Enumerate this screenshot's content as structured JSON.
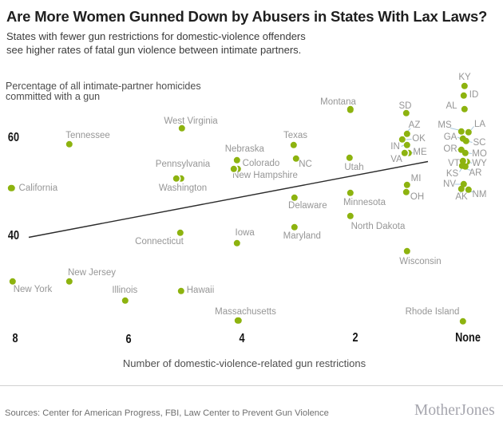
{
  "title": "Are More Women Gunned Down by Abusers in States With Lax Laws?",
  "subtitle_line1": "States with fewer gun restrictions for domestic-violence offenders",
  "subtitle_line2": "see higher rates of fatal gun violence between intimate partners.",
  "y_axis_label_line1": "Percentage of all intimate-partner homicides",
  "y_axis_label_line2": "committed with a gun",
  "x_axis_label": "Number of domestic-violence-related gun restrictions",
  "footer": {
    "sources": "Sources: Center for American Progress, FBI, Law Center to Prevent Gun Violence",
    "logo": "MotherJones"
  },
  "colors": {
    "dot": "#8DB30F",
    "state_label": "#969696",
    "leader": "#A8C9DC",
    "trend": "#2B2B2B"
  },
  "chart_data": {
    "type": "scatter",
    "title": "Are More Women Gunned Down by Abusers in States With Lax Laws?",
    "xlabel": "Number of domestic-violence-related gun restrictions",
    "ylabel": "Percentage of all intimate-partner homicides committed with a gun",
    "x_axis_reversed": true,
    "xlim": [
      8,
      0
    ],
    "ylim_shown_ticks": [
      40,
      60
    ],
    "grid": false,
    "x_ticks": [
      {
        "label": "8",
        "x": 19,
        "y": 425
      },
      {
        "label": "6",
        "x": 161,
        "y": 426
      },
      {
        "label": "4",
        "x": 303,
        "y": 425
      },
      {
        "label": "2",
        "x": 445,
        "y": 424
      },
      {
        "label": "None",
        "x": 586,
        "y": 423.5
      }
    ],
    "y_ticks": [
      {
        "label": "60",
        "x": 17,
        "y": 173
      },
      {
        "label": "40",
        "x": 16.5,
        "y": 296
      }
    ],
    "trend_line": {
      "x1": 36,
      "y1": 297.5,
      "x2": 536,
      "y2": 202.5
    },
    "points": [
      {
        "name": "California",
        "restrictions": 8,
        "pct": 50,
        "x": 14.3,
        "y": 236,
        "lx": 47.8,
        "ly": 236,
        "ring": false,
        "leader": null
      },
      {
        "name": "New York",
        "restrictions": 8,
        "pct": 31,
        "x": 16,
        "y": 352.5,
        "lx": 41,
        "ly": 363.3,
        "ring": false,
        "leader": null
      },
      {
        "name": "Tennessee",
        "restrictions": 7,
        "pct": 59,
        "x": 86.7,
        "y": 181,
        "lx": 110,
        "ly": 170,
        "ring": false,
        "leader": null
      },
      {
        "name": "New Jersey",
        "restrictions": 7,
        "pct": 31,
        "x": 87,
        "y": 352.5,
        "lx": 115,
        "ly": 341.7,
        "ring": false,
        "leader": null
      },
      {
        "name": "Illinois",
        "restrictions": 6,
        "pct": 27,
        "x": 157,
        "y": 376.5,
        "lx": 156.3,
        "ly": 364.3,
        "ring": false,
        "leader": null
      },
      {
        "name": "West Virginia",
        "restrictions": 5,
        "pct": 62,
        "x": 228,
        "y": 161,
        "lx": 239,
        "ly": 152,
        "ring": false,
        "leader": null
      },
      {
        "name": "Washington",
        "restrictions": 5,
        "pct": 52,
        "x": 226.5,
        "y": 223.5,
        "lx": 229,
        "ly": 236,
        "ring": false,
        "leader": null
      },
      {
        "name": "Pennsylvania",
        "restrictions": 5,
        "pct": 52,
        "x": 221,
        "y": 223.5,
        "lx": 229,
        "ly": 206,
        "ring": true,
        "leader": null
      },
      {
        "name": "Connecticut",
        "restrictions": 5,
        "pct": 41,
        "x": 226,
        "y": 292,
        "lx": 199.5,
        "ly": 302.5,
        "ring": false,
        "leader": null
      },
      {
        "name": "Hawaii",
        "restrictions": 5,
        "pct": 29,
        "x": 227,
        "y": 365,
        "lx": 251,
        "ly": 364.3,
        "ring": false,
        "leader": null
      },
      {
        "name": "Nebraska",
        "restrictions": 4,
        "pct": 55,
        "x": 296.5,
        "y": 201,
        "lx": 306.3,
        "ly": 187,
        "ring": false,
        "leader": null
      },
      {
        "name": "New Hampshire",
        "restrictions": 4,
        "pct": 54,
        "x": 298,
        "y": 211.5,
        "lx": 332,
        "ly": 220,
        "ring": false,
        "leader": null
      },
      {
        "name": "Colorado",
        "restrictions": 4,
        "pct": 54,
        "x": 292.5,
        "y": 211.5,
        "lx": 327,
        "ly": 205.3,
        "ring": true,
        "leader": null
      },
      {
        "name": "Iowa",
        "restrictions": 4,
        "pct": 39,
        "x": 297,
        "y": 305,
        "lx": 306.7,
        "ly": 292,
        "ring": false,
        "leader": null
      },
      {
        "name": "Massachusetts",
        "restrictions": 4,
        "pct": 23,
        "x": 298.3,
        "y": 401.7,
        "lx": 307.5,
        "ly": 390.7,
        "ring": false,
        "leader": null
      },
      {
        "name": "Texas",
        "restrictions": 3,
        "pct": 59,
        "x": 367.5,
        "y": 181.5,
        "lx": 370,
        "ly": 169.5,
        "ring": false,
        "leader": null
      },
      {
        "name": "NC",
        "restrictions": 3,
        "pct": 56,
        "x": 370.5,
        "y": 199,
        "lx": 382.5,
        "ly": 206,
        "ring": false,
        "leader": null
      },
      {
        "name": "Delaware",
        "restrictions": 3,
        "pct": 48,
        "x": 369,
        "y": 248,
        "lx": 385.3,
        "ly": 258,
        "ring": false,
        "leader": null
      },
      {
        "name": "Maryland",
        "restrictions": 3,
        "pct": 42,
        "x": 369,
        "y": 285,
        "lx": 378.3,
        "ly": 296,
        "ring": false,
        "leader": null
      },
      {
        "name": "Montana",
        "restrictions": 2,
        "pct": 66,
        "x": 439,
        "y": 137.3,
        "lx": 423.5,
        "ly": 127.5,
        "ring": false,
        "leader": null
      },
      {
        "name": "Utah",
        "restrictions": 2,
        "pct": 56,
        "x": 438,
        "y": 198,
        "lx": 443.5,
        "ly": 209.5,
        "ring": false,
        "leader": null
      },
      {
        "name": "Minnesota",
        "restrictions": 2,
        "pct": 49,
        "x": 439,
        "y": 242,
        "lx": 456.5,
        "ly": 254,
        "ring": false,
        "leader": null
      },
      {
        "name": "North Dakota",
        "restrictions": 2,
        "pct": 44,
        "x": 439,
        "y": 271,
        "lx": 473.5,
        "ly": 284,
        "ring": false,
        "leader": null
      },
      {
        "name": "SD",
        "restrictions": 1,
        "pct": 65,
        "x": 508.5,
        "y": 142,
        "lx": 507.5,
        "ly": 132.5,
        "ring": false,
        "leader": null
      },
      {
        "name": "AZ",
        "restrictions": 1,
        "pct": 61,
        "x": 510,
        "y": 168,
        "lx": 519,
        "ly": 156.5,
        "ring": false,
        "leader": [
          514,
          161,
          510.5,
          164.5
        ]
      },
      {
        "name": "OK",
        "restrictions": 1,
        "pct": 60,
        "x": 504,
        "y": 175,
        "lx": 524.5,
        "ly": 174,
        "ring": false,
        "leader": [
          515.5,
          174.5,
          508.5,
          175
        ]
      },
      {
        "name": "IN",
        "restrictions": 1,
        "pct": 59,
        "x": 510,
        "y": 181.5,
        "lx": 495,
        "ly": 183.5,
        "ring": false,
        "leader": [
          502.5,
          183.5,
          506,
          182
        ]
      },
      {
        "name": "ME",
        "restrictions": 1,
        "pct": 57,
        "x": 511.5,
        "y": 192,
        "lx": 526,
        "ly": 191,
        "ring": false,
        "leader": [
          517.5,
          191.5,
          515,
          192
        ]
      },
      {
        "name": "VA",
        "restrictions": 1,
        "pct": 57,
        "x": 507,
        "y": 192,
        "lx": 496.5,
        "ly": 199.5,
        "ring": true,
        "leader": null
      },
      {
        "name": "MI",
        "restrictions": 1,
        "pct": 50,
        "x": 510,
        "y": 231.5,
        "lx": 521,
        "ly": 223.5,
        "ring": false,
        "leader": null
      },
      {
        "name": "OH",
        "restrictions": 1,
        "pct": 49,
        "x": 509,
        "y": 240.5,
        "lx": 522.5,
        "ly": 247,
        "ring": false,
        "leader": null
      },
      {
        "name": "Wisconsin",
        "restrictions": 1,
        "pct": 37,
        "x": 510,
        "y": 314.5,
        "lx": 526.5,
        "ly": 328,
        "ring": false,
        "leader": null
      },
      {
        "name": "KY",
        "restrictions": 0,
        "pct": 71,
        "x": 582,
        "y": 107.5,
        "lx": 582,
        "ly": 96.5,
        "ring": false,
        "leader": null
      },
      {
        "name": "ID",
        "restrictions": 0,
        "pct": 68,
        "x": 581,
        "y": 120,
        "lx": 593.5,
        "ly": 119,
        "ring": false,
        "leader": null
      },
      {
        "name": "AL",
        "restrictions": 0,
        "pct": 66,
        "x": 582,
        "y": 137,
        "lx": 565.5,
        "ly": 132.5,
        "ring": false,
        "leader": null
      },
      {
        "name": "MS",
        "restrictions": 0,
        "pct": 61,
        "x": 578,
        "y": 165,
        "lx": 557,
        "ly": 156.5,
        "ring": false,
        "leader": [
          564,
          160.5,
          574.5,
          163
        ]
      },
      {
        "name": "LA",
        "restrictions": 0,
        "pct": 61,
        "x": 586.5,
        "y": 166,
        "lx": 601,
        "ly": 156,
        "ring": false,
        "leader": [
          593.5,
          158.5,
          589.5,
          163.5
        ]
      },
      {
        "name": "GA",
        "restrictions": 0,
        "pct": 60,
        "x": 580,
        "y": 173.5,
        "lx": 564,
        "ly": 171.5,
        "ring": false,
        "leader": [
          573,
          172,
          576.5,
          173.5
        ]
      },
      {
        "name": "SC",
        "restrictions": 0,
        "pct": 59,
        "x": 584,
        "y": 177,
        "lx": 600.5,
        "ly": 178.5,
        "ring": false,
        "leader": [
          591.5,
          178.5,
          587.5,
          177.5
        ]
      },
      {
        "name": "OR",
        "restrictions": 0,
        "pct": 58,
        "x": 578,
        "y": 188,
        "lx": 564,
        "ly": 186.5,
        "ring": false,
        "leader": [
          573,
          187,
          574.5,
          188
        ]
      },
      {
        "name": "MO",
        "restrictions": 0,
        "pct": 57,
        "x": 583,
        "y": 192,
        "lx": 600.5,
        "ly": 192.5,
        "ring": false,
        "leader": [
          591,
          192.5,
          587,
          192
        ]
      },
      {
        "name": "WY",
        "restrictions": 0,
        "pct": 55,
        "x": 584.5,
        "y": 203,
        "lx": 600.5,
        "ly": 205,
        "ring": false,
        "leader": [
          591,
          204.5,
          588.5,
          203.5
        ]
      },
      {
        "name": "VT",
        "restrictions": 0,
        "pct": 55,
        "x": 580,
        "y": 201.5,
        "lx": 568.5,
        "ly": 204.5,
        "ring": true,
        "leader": [
          576.5,
          204,
          578,
          202.5
        ]
      },
      {
        "name": "KS",
        "restrictions": 0,
        "pct": 54,
        "x": 579,
        "y": 208,
        "lx": 566.5,
        "ly": 217.5,
        "ring": false,
        "leader": [
          575.5,
          215.5,
          578,
          211.5
        ]
      },
      {
        "name": "AR",
        "restrictions": 0,
        "pct": 54,
        "x": 583,
        "y": 209,
        "lx": 595.5,
        "ly": 217,
        "ring": false,
        "leader": [
          589.5,
          213.5,
          584.5,
          212
        ]
      },
      {
        "name": "NV",
        "restrictions": 0,
        "pct": 51,
        "x": 581,
        "y": 231,
        "lx": 563,
        "ly": 231,
        "ring": false,
        "leader": [
          570,
          231,
          577,
          231
        ]
      },
      {
        "name": "AK",
        "restrictions": 0,
        "pct": 50,
        "x": 578,
        "y": 237,
        "lx": 578,
        "ly": 246.5,
        "ring": false,
        "leader": [
          576.5,
          242.5,
          577.5,
          240.5
        ]
      },
      {
        "name": "NM",
        "restrictions": 0,
        "pct": 49,
        "x": 586.5,
        "y": 238,
        "lx": 600.5,
        "ly": 243.5,
        "ring": false,
        "leader": [
          593.5,
          240.5,
          589,
          240.5
        ]
      },
      {
        "name": "Rhode Island",
        "restrictions": 0,
        "pct": 23,
        "x": 579.5,
        "y": 402.5,
        "lx": 541.5,
        "ly": 391,
        "ring": false,
        "leader": null
      }
    ]
  }
}
